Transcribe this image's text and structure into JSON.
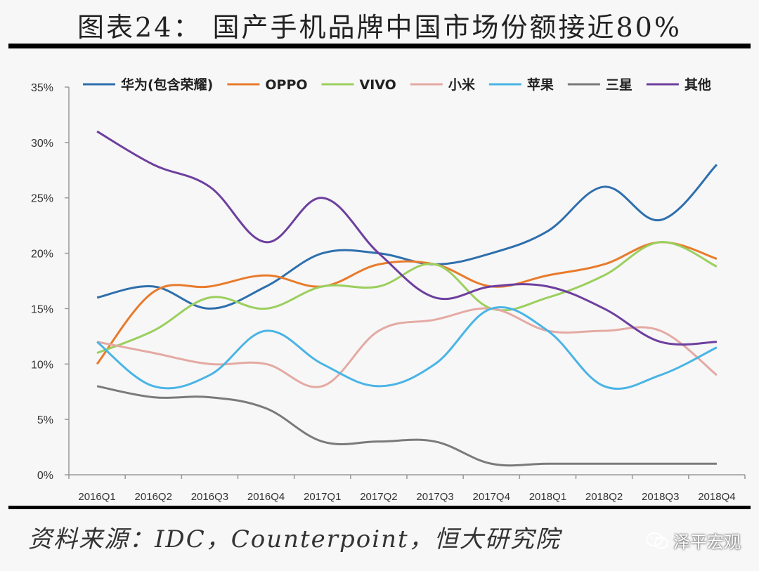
{
  "page": {
    "title": "图表24： 国产手机品牌中国市场份额接近80%",
    "source": "资料来源：IDC，Counterpoint，恒大研究院",
    "watermark": "泽平宏观"
  },
  "chart_data": {
    "type": "line",
    "x": [
      "2016Q1",
      "2016Q2",
      "2016Q3",
      "2016Q4",
      "2017Q1",
      "2017Q2",
      "2017Q3",
      "2017Q4",
      "2018Q1",
      "2018Q2",
      "2018Q3",
      "2018Q4"
    ],
    "ylim": [
      0,
      35
    ],
    "yticks": [
      "0%",
      "5%",
      "10%",
      "15%",
      "20%",
      "25%",
      "30%",
      "35%"
    ],
    "grid": false,
    "legend": "top",
    "series": [
      {
        "name": "华为(包含荣耀)",
        "color": "#2e6fad",
        "values": [
          16,
          17,
          15,
          17,
          20,
          20,
          19,
          20,
          22,
          26,
          23,
          28
        ]
      },
      {
        "name": "OPPO",
        "color": "#e87b2c",
        "values": [
          10,
          16.5,
          17,
          18,
          17,
          19,
          19,
          17,
          18,
          19,
          21,
          19.5
        ]
      },
      {
        "name": "VIVO",
        "color": "#9bcf5e",
        "values": [
          11,
          13,
          16,
          15,
          17,
          17,
          19,
          15,
          16,
          18,
          21,
          18.8
        ]
      },
      {
        "name": "小米",
        "color": "#e4aaa3",
        "values": [
          12,
          11,
          10,
          10,
          8,
          13,
          14,
          15,
          13,
          13,
          13,
          9
        ]
      },
      {
        "name": "苹果",
        "color": "#4ab4e6",
        "values": [
          12,
          8,
          9,
          13,
          10,
          8,
          10,
          15,
          13,
          8,
          9,
          11.5
        ]
      },
      {
        "name": "三星",
        "color": "#7a7a7a",
        "values": [
          8,
          7,
          7,
          6,
          3,
          3,
          3,
          1,
          1,
          1,
          1,
          1
        ]
      },
      {
        "name": "其他",
        "color": "#6d3f9e",
        "values": [
          31,
          28,
          26,
          21,
          25,
          20,
          16,
          17,
          17,
          15,
          12,
          12
        ]
      }
    ]
  }
}
